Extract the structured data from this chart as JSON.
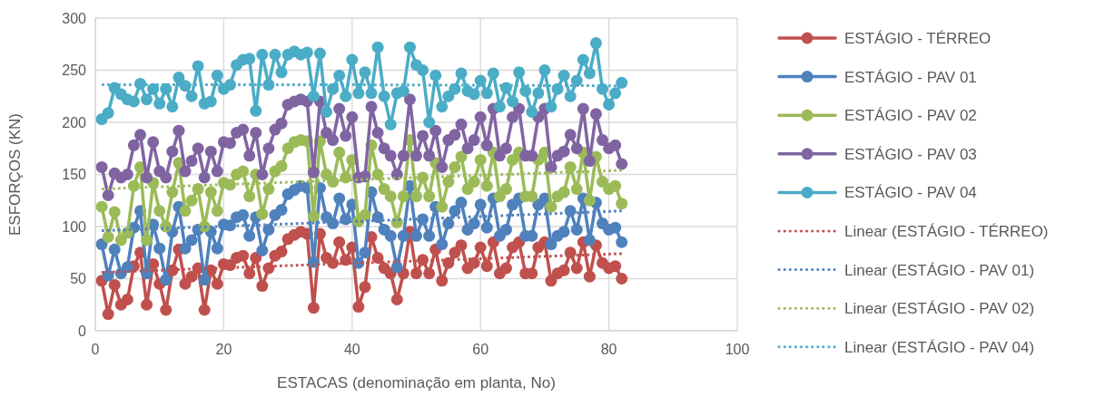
{
  "chart_data": {
    "type": "line",
    "xlabel": "ESTACAS (denominação em planta, No)",
    "ylabel": "ESFORÇOS (KN)",
    "xlim": [
      0,
      100
    ],
    "xticks": [
      0,
      20,
      40,
      60,
      80,
      100
    ],
    "ylim": [
      0,
      300
    ],
    "yticks": [
      0,
      50,
      100,
      150,
      200,
      250,
      300
    ],
    "grid": true,
    "legend": "right",
    "marker": "circle",
    "line_style": "solid",
    "x": [
      1,
      2,
      3,
      4,
      5,
      6,
      7,
      8,
      9,
      10,
      11,
      12,
      13,
      14,
      15,
      16,
      17,
      18,
      19,
      20,
      21,
      22,
      23,
      24,
      25,
      26,
      27,
      28,
      29,
      30,
      31,
      32,
      33,
      34,
      35,
      36,
      37,
      38,
      39,
      40,
      41,
      42,
      43,
      44,
      45,
      46,
      47,
      48,
      49,
      50,
      51,
      52,
      53,
      54,
      55,
      56,
      57,
      58,
      59,
      60,
      61,
      62,
      63,
      64,
      65,
      66,
      67,
      68,
      69,
      70,
      71,
      72,
      73,
      74,
      75,
      76,
      77,
      78,
      79,
      80,
      81,
      82
    ],
    "series": [
      {
        "name": "ESTÁGIO - TÉRREO",
        "color": "#c0504d",
        "values": [
          48,
          16,
          44,
          25,
          30,
          62,
          75,
          25,
          64,
          45,
          20,
          58,
          78,
          45,
          52,
          60,
          20,
          58,
          45,
          64,
          63,
          70,
          72,
          55,
          70,
          43,
          60,
          72,
          76,
          88,
          92,
          95,
          93,
          22,
          93,
          70,
          65,
          85,
          68,
          80,
          23,
          42,
          90,
          70,
          60,
          55,
          30,
          55,
          95,
          55,
          68,
          55,
          78,
          48,
          65,
          75,
          82,
          60,
          65,
          80,
          62,
          85,
          55,
          60,
          80,
          85,
          55,
          55,
          80,
          85,
          48,
          55,
          58,
          75,
          60,
          85,
          52,
          82,
          65,
          60,
          62,
          50
        ]
      },
      {
        "name": "ESTÁGIO - PAV 01",
        "color": "#4f81bd",
        "values": [
          83,
          53,
          78,
          55,
          61,
          99,
          115,
          55,
          102,
          79,
          49,
          95,
          119,
          79,
          87,
          97,
          49,
          95,
          79,
          102,
          101,
          109,
          111,
          91,
          109,
          77,
          97,
          111,
          116,
          131,
          135,
          139,
          137,
          66,
          137,
          109,
          103,
          127,
          107,
          121,
          65,
          75,
          133,
          109,
          97,
          91,
          61,
          91,
          139,
          91,
          107,
          91,
          119,
          83,
          103,
          115,
          123,
          97,
          103,
          121,
          99,
          127,
          91,
          97,
          121,
          127,
          91,
          91,
          121,
          127,
          83,
          91,
          95,
          115,
          97,
          127,
          87,
          123,
          103,
          97,
          99,
          85
        ]
      },
      {
        "name": "ESTÁGIO - PAV 02",
        "color": "#9bbb59",
        "values": [
          119,
          90,
          114,
          87,
          94,
          139,
          157,
          87,
          142,
          115,
          100,
          133,
          161,
          115,
          125,
          136,
          100,
          133,
          115,
          142,
          140,
          150,
          153,
          129,
          150,
          112,
          136,
          153,
          158,
          175,
          181,
          183,
          182,
          110,
          182,
          150,
          143,
          171,
          147,
          164,
          105,
          111,
          178,
          150,
          136,
          129,
          104,
          129,
          183,
          129,
          147,
          129,
          161,
          119,
          143,
          157,
          167,
          136,
          143,
          164,
          139,
          171,
          129,
          136,
          164,
          171,
          129,
          129,
          164,
          171,
          119,
          129,
          133,
          157,
          136,
          171,
          125,
          167,
          143,
          136,
          139,
          122
        ]
      },
      {
        "name": "ESTÁGIO - PAV 03",
        "color": "#8064a2",
        "values": [
          157,
          130,
          151,
          147,
          150,
          178,
          188,
          147,
          181,
          153,
          147,
          172,
          192,
          153,
          163,
          175,
          147,
          172,
          153,
          181,
          180,
          190,
          193,
          168,
          190,
          150,
          175,
          193,
          199,
          217,
          220,
          222,
          220,
          152,
          220,
          190,
          183,
          213,
          187,
          205,
          147,
          148,
          215,
          190,
          175,
          168,
          150,
          168,
          222,
          168,
          187,
          168,
          192,
          157,
          183,
          188,
          198,
          175,
          183,
          205,
          178,
          213,
          168,
          175,
          205,
          213,
          168,
          168,
          205,
          213,
          157,
          168,
          172,
          188,
          175,
          213,
          163,
          208,
          183,
          175,
          178,
          160
        ]
      },
      {
        "name": "ESTÁGIO - PAV 04",
        "color": "#4bacc6",
        "values": [
          203,
          209,
          233,
          227,
          222,
          220,
          237,
          222,
          232,
          218,
          232,
          215,
          243,
          235,
          225,
          254,
          218,
          220,
          245,
          232,
          236,
          255,
          260,
          261,
          211,
          265,
          236,
          265,
          248,
          265,
          268,
          265,
          267,
          225,
          266,
          210,
          232,
          245,
          225,
          260,
          228,
          248,
          228,
          272,
          225,
          198,
          228,
          230,
          272,
          255,
          250,
          200,
          245,
          215,
          225,
          232,
          247,
          230,
          227,
          240,
          228,
          247,
          215,
          233,
          220,
          248,
          230,
          210,
          228,
          250,
          215,
          232,
          245,
          225,
          240,
          260,
          247,
          276,
          232,
          217,
          228,
          238
        ]
      },
      {
        "name": "Linear (ESTÁGIO - TÉRREO)",
        "color": "#c0504d",
        "x": [
          1,
          41,
          82
        ],
        "values": [
          56,
          65,
          74
        ],
        "marker": "none",
        "line_style": "dotted"
      },
      {
        "name": "Linear (ESTÁGIO - PAV 01)",
        "color": "#4f81bd",
        "x": [
          1,
          41,
          82
        ],
        "values": [
          96,
          105,
          115
        ],
        "marker": "none",
        "line_style": "dotted"
      },
      {
        "name": "Linear (ESTÁGIO - PAV 02)",
        "color": "#9bbb59",
        "x": [
          1,
          41,
          82
        ],
        "values": [
          136,
          145,
          154
        ],
        "marker": "none",
        "line_style": "dotted"
      },
      {
        "name": "Linear (ESTÁGIO - PAV 04)",
        "color": "#4bacc6",
        "x": [
          1,
          41,
          82
        ],
        "values": [
          236,
          236,
          235
        ],
        "marker": "none",
        "line_style": "dotted"
      }
    ]
  }
}
